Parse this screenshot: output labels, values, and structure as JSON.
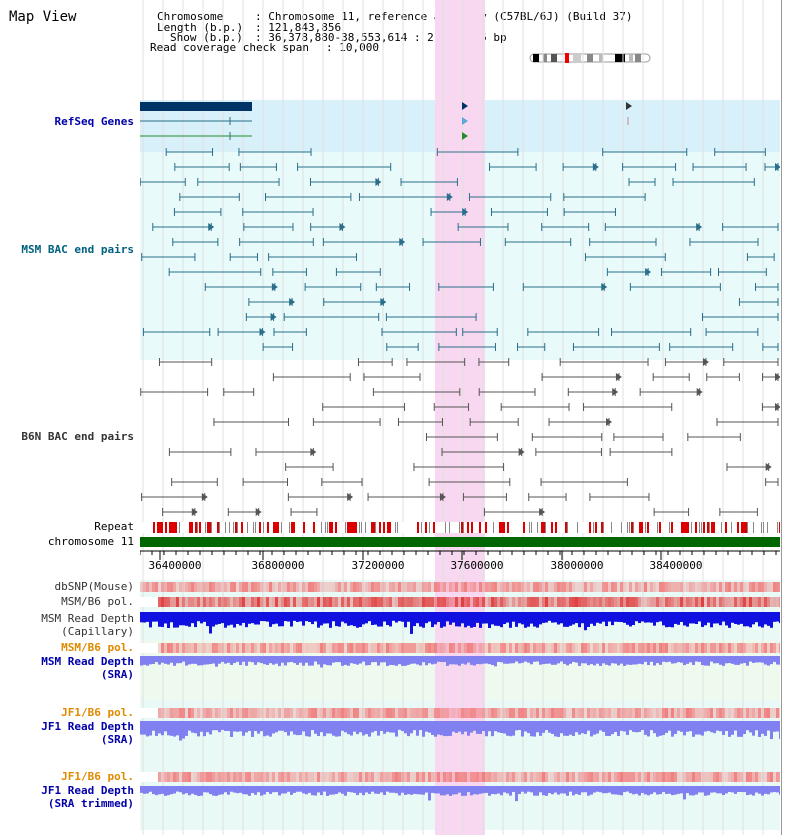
{
  "title": "Map View",
  "header": {
    "chromosome_label": "Chromosome",
    "chromosome_value": ": Chromosome 11, reference assembly (C57BL/6J) (Build 37)",
    "length_label": "Length (b.p.)",
    "length_value": ": 121,843,856",
    "show_label": "Show (b.p.)",
    "show_value": ": 36,378,880-38,553,614 : 2,174,735 bp",
    "coverage_label": "Read coverage check span",
    "coverage_value": ": 10,000"
  },
  "tracks": {
    "refseq": "RefSeq Genes",
    "msm_bac": "MSM BAC end pairs",
    "b6n_bac": "B6N BAC end pairs",
    "repeat": "Repeat",
    "chromosome": "chromosome 11",
    "dbsnp": "dbSNP(Mouse)",
    "msm_b6_pol_1": "MSM/B6 pol.",
    "msm_read_depth_cap_1": "MSM Read Depth",
    "msm_read_depth_cap_2": "(Capillary)",
    "msm_b6_pol_2": "MSM/B6 pol.",
    "msm_read_depth_sra_1": "MSM Read Depth",
    "msm_read_depth_sra_2": "(SRA)",
    "jf1_b6_pol_1": "JF1/B6 pol.",
    "jf1_read_depth_sra_1": "JF1 Read Depth",
    "jf1_read_depth_sra_2": "(SRA)",
    "jf1_b6_pol_2": "JF1/B6 pol.",
    "jf1_read_depth_trim_1": "JF1 Read Depth",
    "jf1_read_depth_trim_2": "(SRA trimmed)"
  },
  "axis": {
    "ticks": [
      "36400000",
      "36800000",
      "37200000",
      "37600000",
      "38000000",
      "38400000"
    ]
  },
  "colors": {
    "highlight": "#f8d8f0",
    "refseq_bg": "#d8f0fa",
    "bac_bg": "#e8fafa",
    "navy": "#003366",
    "teal": "#2a6e8a",
    "gray_line": "#555555",
    "chromosome_bar": "#006600",
    "depth_blue": "#1010e0",
    "depth_light": "#8080f0",
    "snp_red": "#f08080"
  }
}
